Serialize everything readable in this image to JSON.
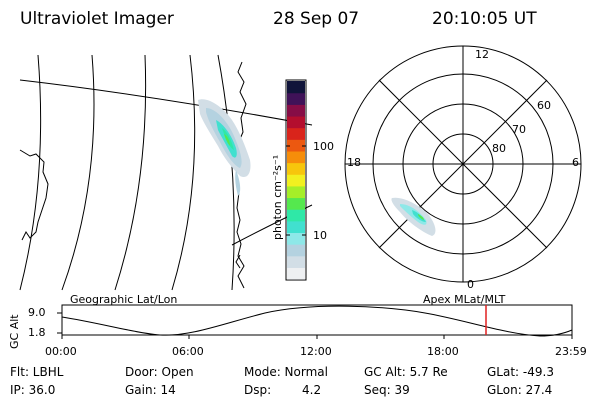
{
  "header": {
    "instrument": "Ultraviolet Imager",
    "date": "28 Sep 07",
    "time": "20:10:05 UT"
  },
  "colorbar": {
    "unit_label": "photon cm⁻²s⁻¹",
    "ticks": [
      "100",
      "10"
    ],
    "colors": [
      "#eef0f2",
      "#d2dee6",
      "#b4d2e0",
      "#8ee8e8",
      "#41e0cf",
      "#2fe8a7",
      "#55e84e",
      "#a6ee28",
      "#f2f020",
      "#f7c60c",
      "#f68d0a",
      "#ec5810",
      "#d9241b",
      "#b30e2e",
      "#860d46",
      "#3f1258",
      "#10143a"
    ]
  },
  "polar_plot": {
    "mlt_labels": [
      "12",
      "18",
      "6",
      "0"
    ],
    "lat_labels": [
      "60",
      "70",
      "80"
    ]
  },
  "map": {
    "left_caption": "Geographic Lat/Lon",
    "right_caption": "Apex MLat/MLT"
  },
  "timeline": {
    "axis_label": "GC Alt",
    "y_ticks": [
      "9.0",
      "1.8"
    ],
    "x_ticks": [
      "00:00",
      "06:00",
      "12:00",
      "18:00",
      "23:59"
    ],
    "marker_color": "#e02020"
  },
  "info": {
    "flt": "Flt: LBHL",
    "door": "Door: Open",
    "mode": "Mode: Normal",
    "gc_alt": "GC Alt: 5.7 Re",
    "glat": "GLat: -49.3",
    "ip": "IP: 36.0",
    "gain": "Gain: 14",
    "dsp_label": "Dsp:",
    "dsp_value": "4.2",
    "seq": "Seq: 39",
    "glon": "GLon: 27.4"
  }
}
